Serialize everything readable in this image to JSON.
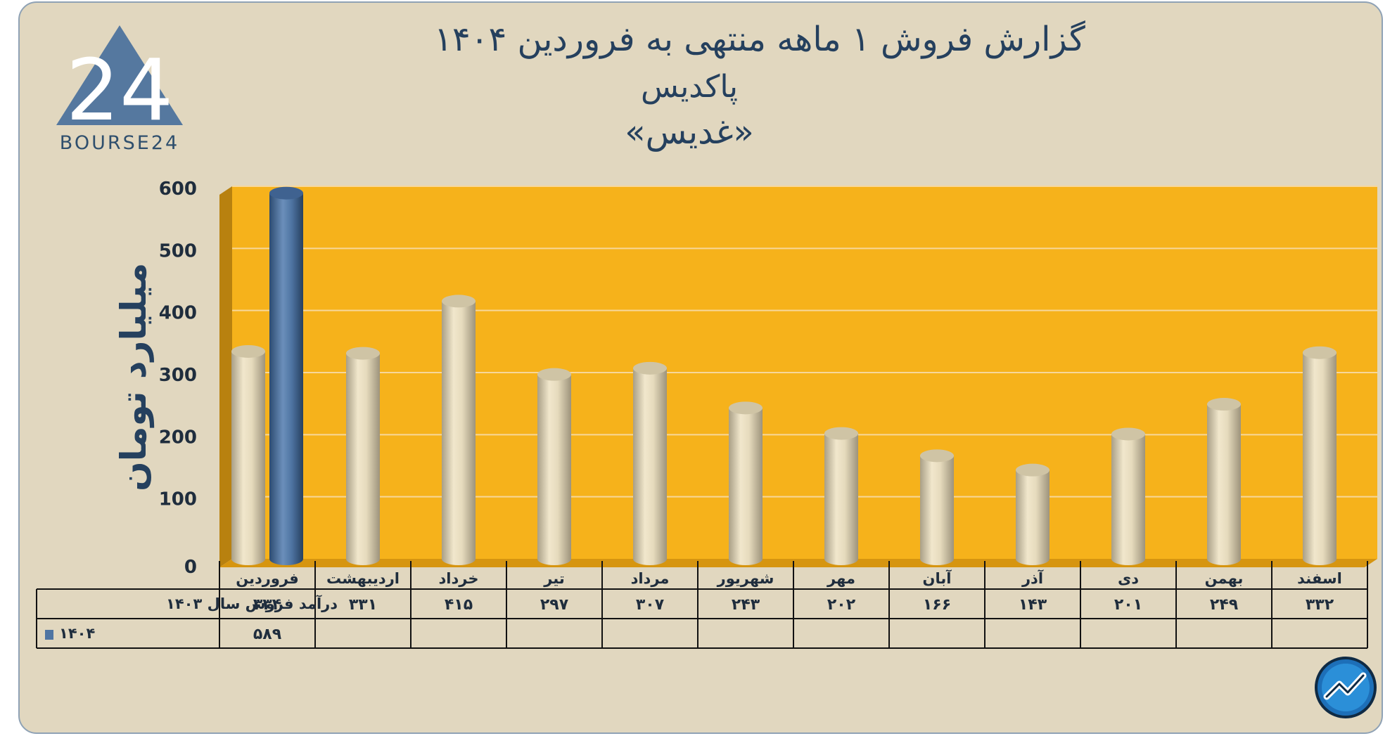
{
  "title": {
    "line1": "گزارش  فروش ۱ ماهه منتهی به فروردین ۱۴۰۴",
    "line2": "پاکدیس",
    "line3": "«غدیس»"
  },
  "logo": {
    "text": "BOURSE24",
    "mark": "24"
  },
  "colors": {
    "plot_bg": "#f6b21b",
    "bar_1403": "#e2d6b5",
    "bar_1404": "#4f75a3",
    "frame_bg": "#e1d7bf",
    "title": "#25405e"
  },
  "chart_data": {
    "type": "bar",
    "title": "گزارش  فروش ۱ ماهه منتهی به فروردین ۱۴۰۴",
    "ylabel": "میلیارد تومان",
    "ylim": [
      0,
      600
    ],
    "yticks": [
      0,
      100,
      200,
      300,
      400,
      500,
      600
    ],
    "ytick_labels": [
      "0",
      "100",
      "200",
      "300",
      "400",
      "500",
      "600"
    ],
    "categories": [
      "فروردین",
      "اردیبهشت",
      "خرداد",
      "تیر",
      "مرداد",
      "شهریور",
      "مهر",
      "آبان",
      "آذر",
      "دی",
      "بهمن",
      "اسفند"
    ],
    "grid": true,
    "series": [
      {
        "name": "درآمد فروش سال ۱۴۰۳",
        "values": [
          334,
          331,
          415,
          297,
          307,
          243,
          202,
          166,
          143,
          201,
          249,
          332
        ],
        "labels": [
          "۳۳۴",
          "۳۳۱",
          "۴۱۵",
          "۲۹۷",
          "۳۰۷",
          "۲۴۳",
          "۲۰۲",
          "۱۶۶",
          "۱۴۳",
          "۲۰۱",
          "۲۴۹",
          "۳۳۲"
        ]
      },
      {
        "name": "۱۴۰۴",
        "values": [
          589,
          null,
          null,
          null,
          null,
          null,
          null,
          null,
          null,
          null,
          null,
          null
        ],
        "labels": [
          "۵۸۹",
          "",
          "",
          "",
          "",
          "",
          "",
          "",
          "",
          "",
          "",
          ""
        ]
      }
    ]
  }
}
